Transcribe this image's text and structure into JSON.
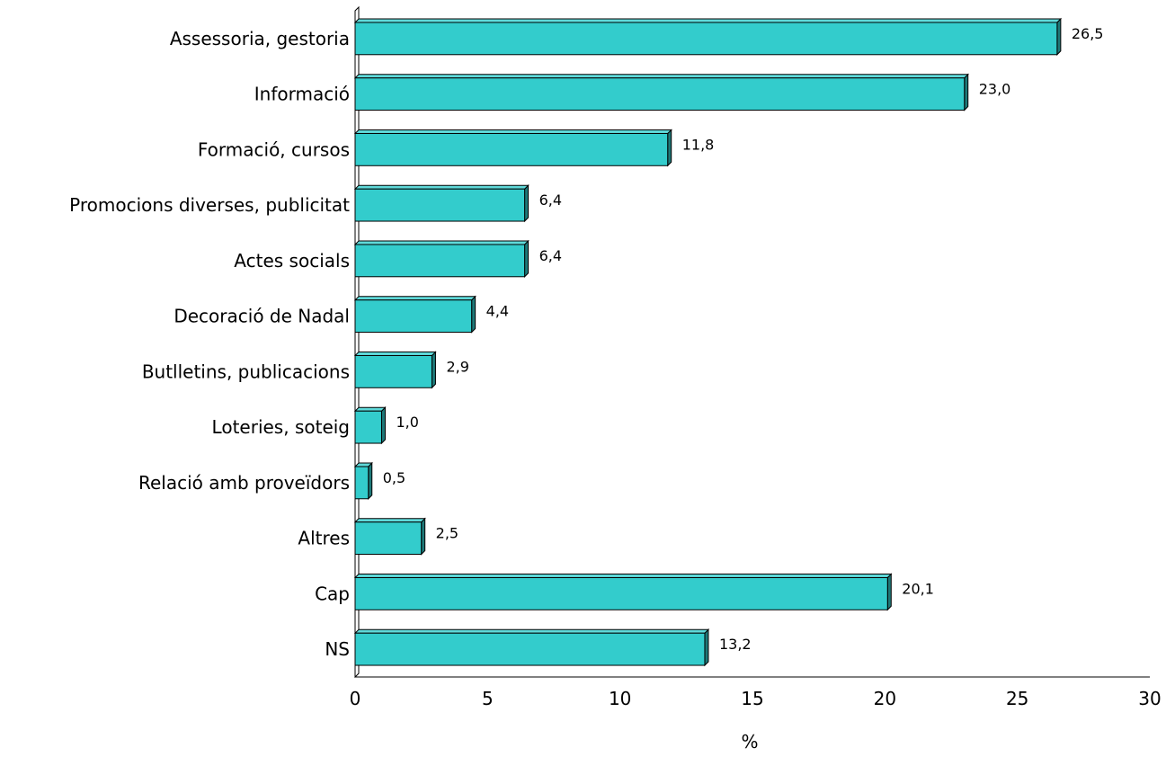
{
  "chart_data": {
    "type": "bar",
    "orientation": "horizontal",
    "categories": [
      "Assessoria, gestoria",
      "Informació",
      "Formació, cursos",
      "Promocions diverses, publicitat",
      "Actes socials",
      "Decoració de Nadal",
      "Butlletins, publicacions",
      "Loteries, soteig",
      "Relació amb proveïdors",
      "Altres",
      "Cap",
      "NS"
    ],
    "values": [
      26.5,
      23.0,
      11.8,
      6.4,
      6.4,
      4.4,
      2.9,
      1.0,
      0.5,
      2.5,
      20.1,
      13.2
    ],
    "value_labels": [
      "26,5",
      "23,0",
      "11,8",
      "6,4",
      "6,4",
      "4,4",
      "2,9",
      "1,0",
      "0,5",
      "2,5",
      "20,1",
      "13,2"
    ],
    "xlabel": "%",
    "xlim": [
      0,
      30
    ],
    "xticks": [
      "0",
      "5",
      "10",
      "15",
      "20",
      "25",
      "30"
    ],
    "grid": false,
    "legend": "none",
    "colors": {
      "bar_face": "#33CCCC",
      "bar_side": "#1E7878",
      "bar_top": "#5FDADA",
      "bar_outline": "#000000",
      "axis": "#000000"
    }
  }
}
